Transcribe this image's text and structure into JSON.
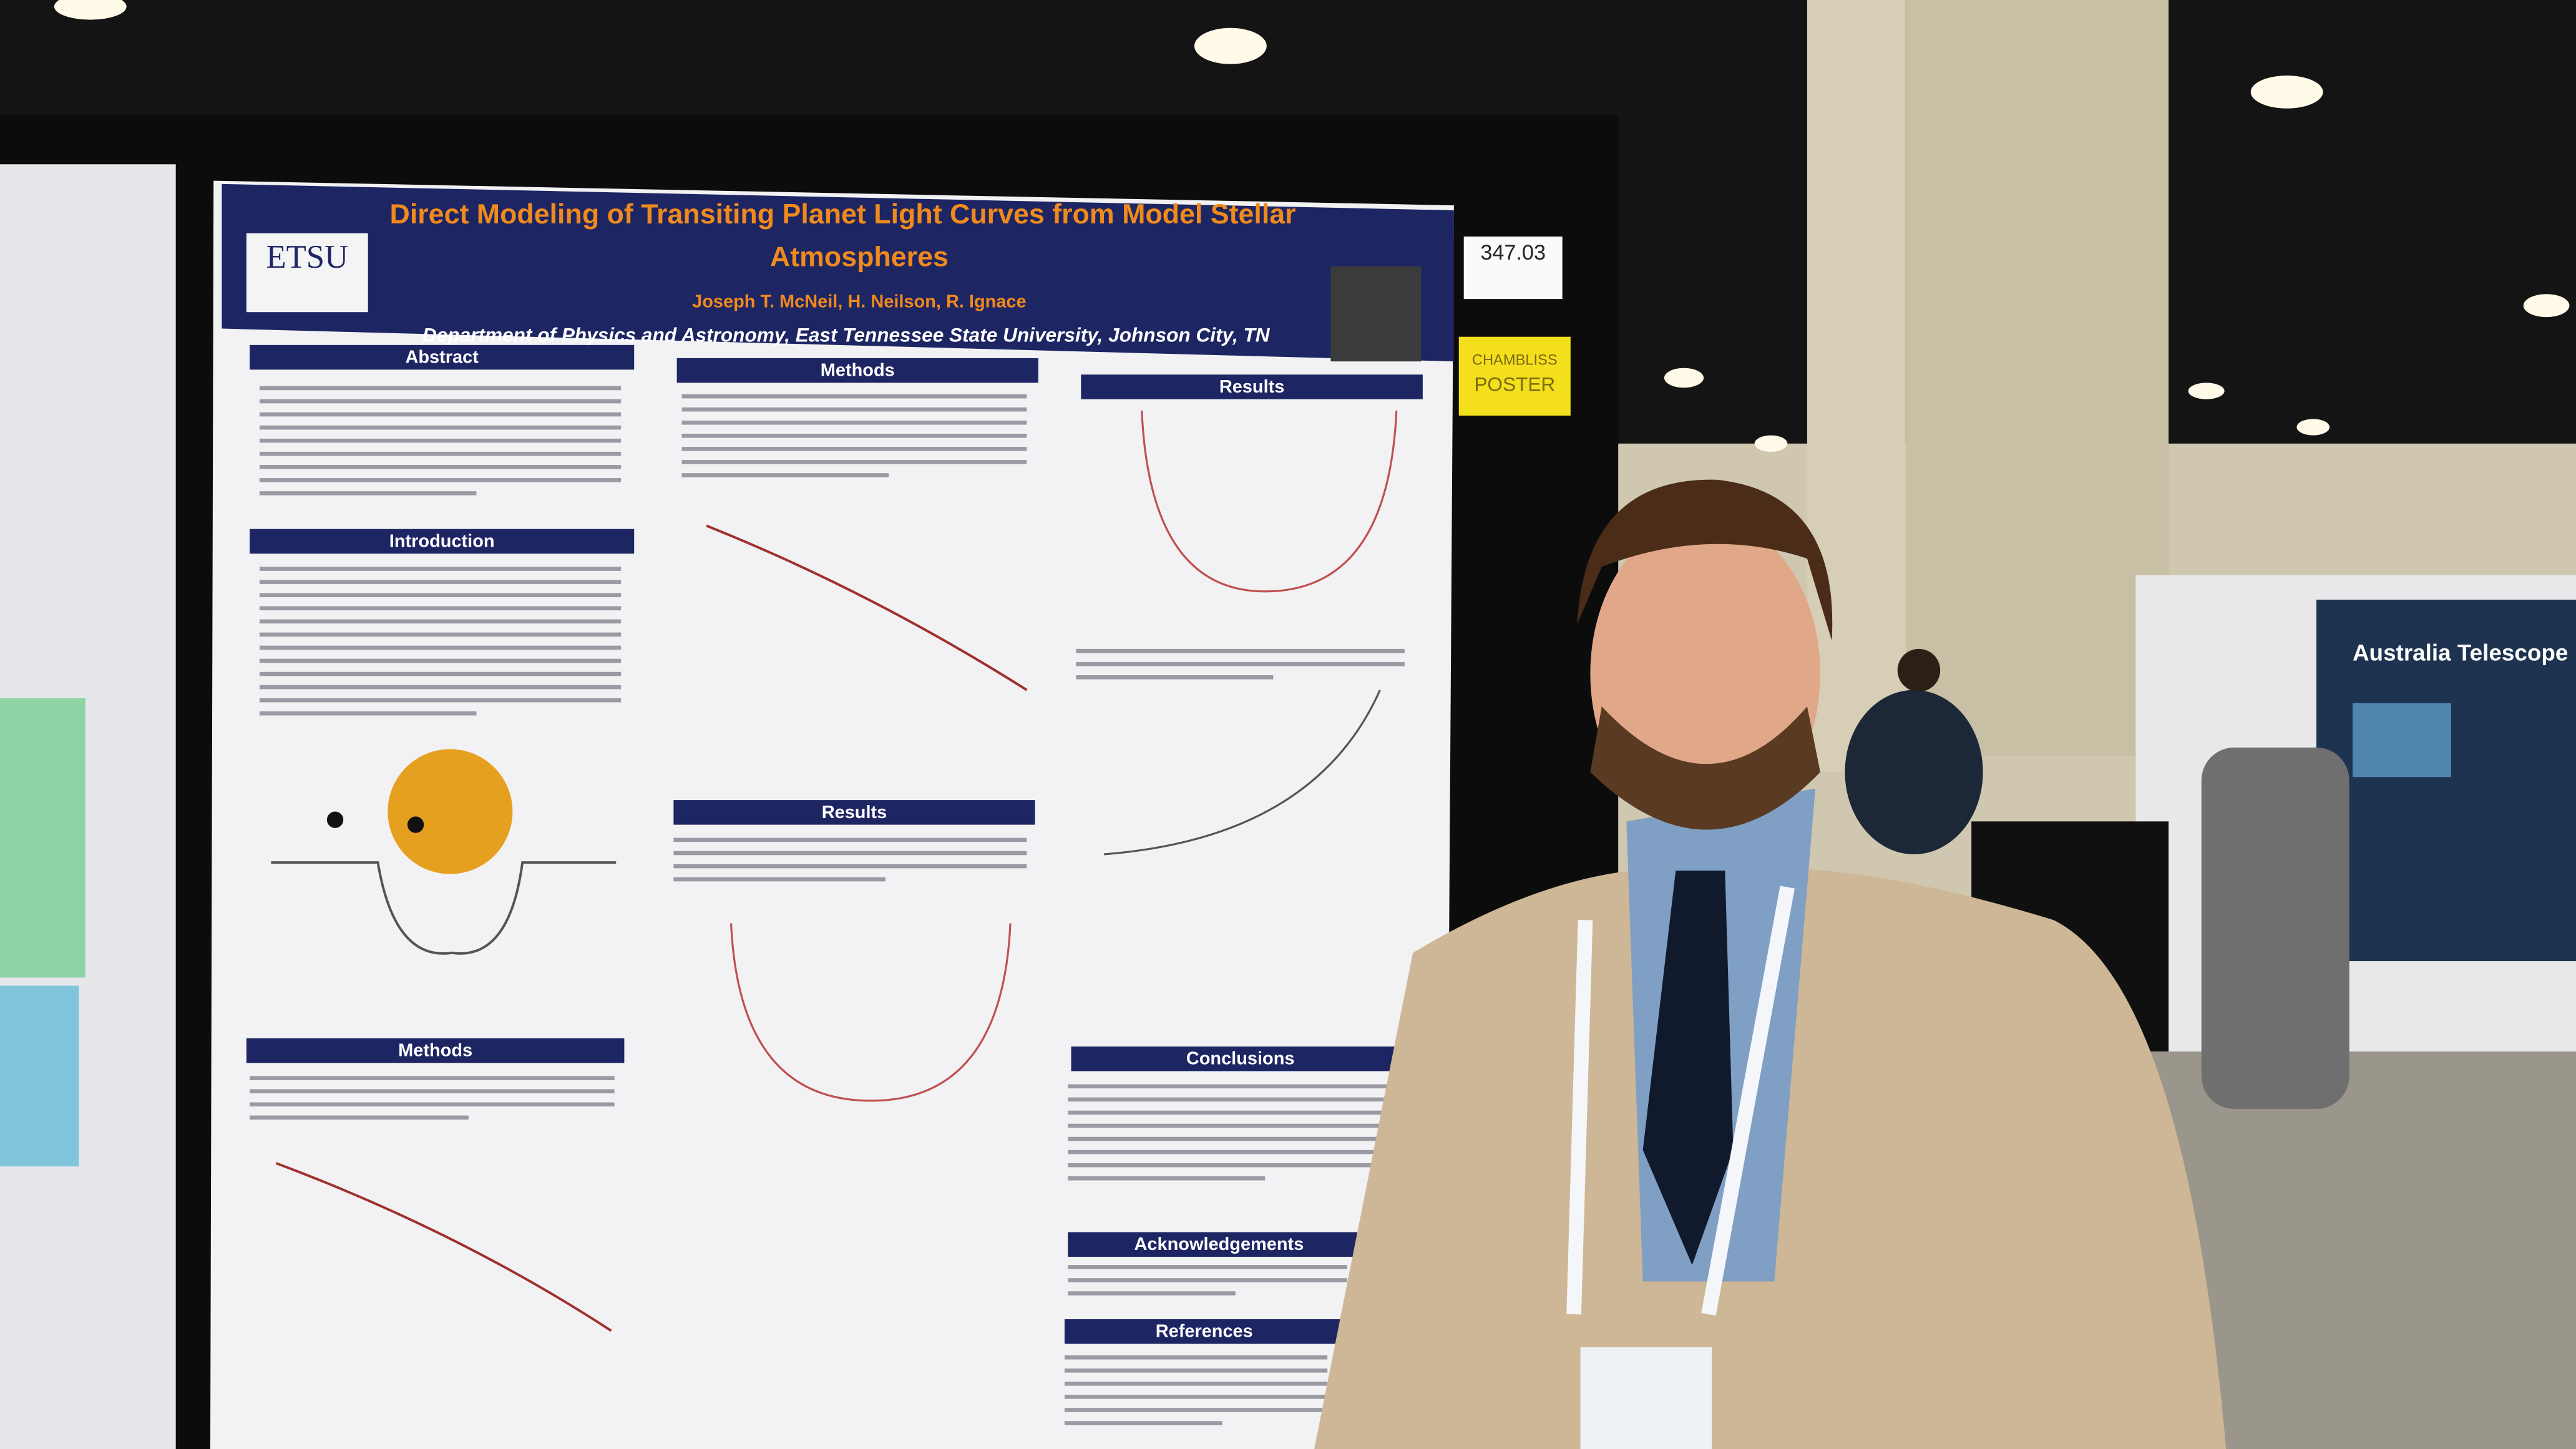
{
  "poster": {
    "title_lines": [
      "Direct Modeling of Transiting Planet Light Curves from Model Stellar",
      "Atmospheres"
    ],
    "authors": "Joseph T. McNeil,  H. Neilson,  R. Ignace",
    "affiliation": "Department of Physics and Astronomy, East Tennessee State University, Johnson City, TN",
    "logo": "ETSU",
    "board_number": "347.03",
    "sticker": [
      "CHAMBLISS",
      "POSTER"
    ],
    "sections": [
      "Abstract",
      "Introduction",
      "Methods",
      "Methods",
      "Results",
      "Results",
      "Conclusions",
      "Acknowledgements",
      "References"
    ]
  },
  "booth": {
    "banner": "Australia Telescope"
  }
}
